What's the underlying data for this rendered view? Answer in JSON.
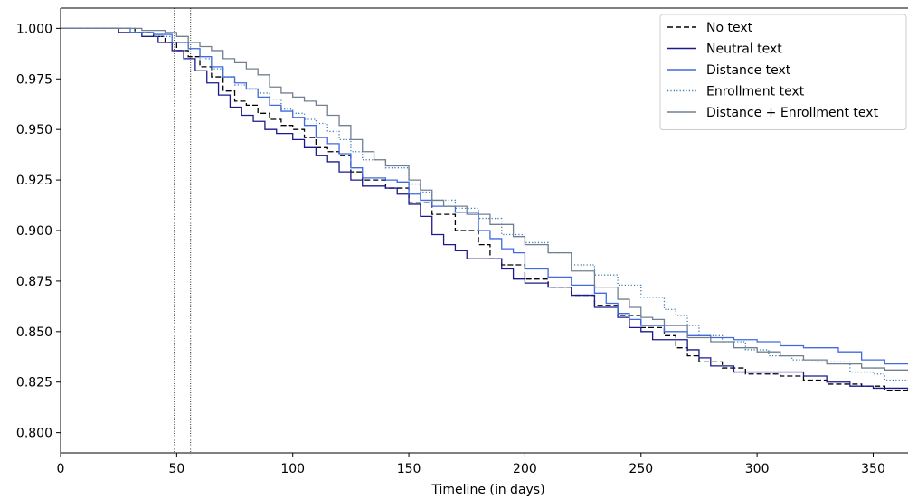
{
  "chart_data": {
    "type": "line",
    "title": "",
    "xlabel": "Timeline (in days)",
    "ylabel": "",
    "xlim": [
      0,
      365
    ],
    "ylim": [
      0.79,
      1.01
    ],
    "x_ticks": [
      0,
      50,
      100,
      150,
      200,
      250,
      300,
      350
    ],
    "y_ticks": [
      0.8,
      0.825,
      0.85,
      0.875,
      0.9,
      0.925,
      0.95,
      0.975,
      1.0
    ],
    "y_tick_labels": [
      "0.800",
      "0.825",
      "0.850",
      "0.875",
      "0.900",
      "0.925",
      "0.950",
      "0.975",
      "1.000"
    ],
    "vertical_reference_lines": [
      49,
      56
    ],
    "grid": false,
    "legend_position": "top-right",
    "series": [
      {
        "name": "No text",
        "color": "#000000",
        "dash": "dashed",
        "points": [
          [
            0,
            1.0
          ],
          [
            22,
            1.0
          ],
          [
            32,
            0.998
          ],
          [
            40,
            0.996
          ],
          [
            45,
            0.993
          ],
          [
            50,
            0.989
          ],
          [
            55,
            0.986
          ],
          [
            60,
            0.981
          ],
          [
            65,
            0.976
          ],
          [
            70,
            0.969
          ],
          [
            75,
            0.964
          ],
          [
            80,
            0.962
          ],
          [
            85,
            0.958
          ],
          [
            90,
            0.955
          ],
          [
            95,
            0.952
          ],
          [
            100,
            0.95
          ],
          [
            105,
            0.946
          ],
          [
            110,
            0.941
          ],
          [
            115,
            0.939
          ],
          [
            120,
            0.937
          ],
          [
            125,
            0.929
          ],
          [
            130,
            0.925
          ],
          [
            140,
            0.921
          ],
          [
            150,
            0.914
          ],
          [
            160,
            0.908
          ],
          [
            170,
            0.9
          ],
          [
            180,
            0.893
          ],
          [
            185,
            0.886
          ],
          [
            190,
            0.883
          ],
          [
            200,
            0.876
          ],
          [
            210,
            0.872
          ],
          [
            220,
            0.868
          ],
          [
            230,
            0.863
          ],
          [
            240,
            0.858
          ],
          [
            250,
            0.852
          ],
          [
            260,
            0.848
          ],
          [
            265,
            0.842
          ],
          [
            270,
            0.838
          ],
          [
            275,
            0.835
          ],
          [
            285,
            0.832
          ],
          [
            295,
            0.829
          ],
          [
            310,
            0.828
          ],
          [
            320,
            0.826
          ],
          [
            330,
            0.824
          ],
          [
            345,
            0.823
          ],
          [
            355,
            0.821
          ],
          [
            365,
            0.82
          ]
        ]
      },
      {
        "name": "Neutral text",
        "color": "#1a1a8c",
        "dash": "solid",
        "points": [
          [
            0,
            1.0
          ],
          [
            20,
            1.0
          ],
          [
            25,
            0.998
          ],
          [
            35,
            0.996
          ],
          [
            42,
            0.993
          ],
          [
            48,
            0.989
          ],
          [
            53,
            0.985
          ],
          [
            58,
            0.979
          ],
          [
            63,
            0.973
          ],
          [
            68,
            0.967
          ],
          [
            73,
            0.961
          ],
          [
            78,
            0.957
          ],
          [
            83,
            0.954
          ],
          [
            88,
            0.95
          ],
          [
            93,
            0.948
          ],
          [
            100,
            0.945
          ],
          [
            105,
            0.941
          ],
          [
            110,
            0.937
          ],
          [
            115,
            0.934
          ],
          [
            120,
            0.929
          ],
          [
            125,
            0.925
          ],
          [
            130,
            0.922
          ],
          [
            140,
            0.921
          ],
          [
            145,
            0.918
          ],
          [
            150,
            0.913
          ],
          [
            155,
            0.907
          ],
          [
            160,
            0.898
          ],
          [
            165,
            0.893
          ],
          [
            170,
            0.89
          ],
          [
            175,
            0.886
          ],
          [
            185,
            0.886
          ],
          [
            190,
            0.881
          ],
          [
            195,
            0.876
          ],
          [
            200,
            0.874
          ],
          [
            210,
            0.872
          ],
          [
            220,
            0.868
          ],
          [
            230,
            0.862
          ],
          [
            240,
            0.857
          ],
          [
            245,
            0.852
          ],
          [
            250,
            0.85
          ],
          [
            255,
            0.846
          ],
          [
            265,
            0.846
          ],
          [
            270,
            0.841
          ],
          [
            275,
            0.837
          ],
          [
            280,
            0.833
          ],
          [
            290,
            0.83
          ],
          [
            300,
            0.83
          ],
          [
            310,
            0.83
          ],
          [
            320,
            0.828
          ],
          [
            330,
            0.825
          ],
          [
            340,
            0.823
          ],
          [
            350,
            0.822
          ],
          [
            365,
            0.821
          ]
        ]
      },
      {
        "name": "Distance text",
        "color": "#4169e1",
        "dash": "solid",
        "points": [
          [
            0,
            1.0
          ],
          [
            22,
            1.0
          ],
          [
            30,
            0.998
          ],
          [
            40,
            0.997
          ],
          [
            48,
            0.993
          ],
          [
            55,
            0.99
          ],
          [
            60,
            0.986
          ],
          [
            65,
            0.981
          ],
          [
            70,
            0.976
          ],
          [
            75,
            0.973
          ],
          [
            80,
            0.97
          ],
          [
            85,
            0.966
          ],
          [
            90,
            0.962
          ],
          [
            95,
            0.959
          ],
          [
            100,
            0.956
          ],
          [
            105,
            0.952
          ],
          [
            110,
            0.946
          ],
          [
            115,
            0.943
          ],
          [
            120,
            0.938
          ],
          [
            125,
            0.931
          ],
          [
            130,
            0.926
          ],
          [
            140,
            0.925
          ],
          [
            145,
            0.924
          ],
          [
            150,
            0.918
          ],
          [
            155,
            0.915
          ],
          [
            160,
            0.912
          ],
          [
            170,
            0.909
          ],
          [
            180,
            0.9
          ],
          [
            185,
            0.896
          ],
          [
            190,
            0.891
          ],
          [
            195,
            0.889
          ],
          [
            200,
            0.881
          ],
          [
            210,
            0.877
          ],
          [
            220,
            0.873
          ],
          [
            230,
            0.869
          ],
          [
            235,
            0.864
          ],
          [
            240,
            0.859
          ],
          [
            245,
            0.856
          ],
          [
            250,
            0.853
          ],
          [
            260,
            0.85
          ],
          [
            270,
            0.848
          ],
          [
            280,
            0.847
          ],
          [
            290,
            0.846
          ],
          [
            300,
            0.845
          ],
          [
            310,
            0.843
          ],
          [
            320,
            0.842
          ],
          [
            335,
            0.84
          ],
          [
            345,
            0.836
          ],
          [
            355,
            0.834
          ],
          [
            365,
            0.834
          ]
        ]
      },
      {
        "name": "Enrollment text",
        "color": "#3a7ab5",
        "dash": "dotted",
        "points": [
          [
            0,
            1.0
          ],
          [
            22,
            1.0
          ],
          [
            32,
            0.998
          ],
          [
            40,
            0.996
          ],
          [
            48,
            0.993
          ],
          [
            55,
            0.99
          ],
          [
            60,
            0.985
          ],
          [
            65,
            0.98
          ],
          [
            70,
            0.976
          ],
          [
            75,
            0.972
          ],
          [
            80,
            0.97
          ],
          [
            85,
            0.968
          ],
          [
            90,
            0.965
          ],
          [
            95,
            0.96
          ],
          [
            100,
            0.958
          ],
          [
            105,
            0.955
          ],
          [
            110,
            0.953
          ],
          [
            115,
            0.949
          ],
          [
            120,
            0.945
          ],
          [
            125,
            0.939
          ],
          [
            130,
            0.935
          ],
          [
            140,
            0.931
          ],
          [
            150,
            0.923
          ],
          [
            155,
            0.919
          ],
          [
            160,
            0.915
          ],
          [
            170,
            0.911
          ],
          [
            180,
            0.906
          ],
          [
            190,
            0.898
          ],
          [
            200,
            0.894
          ],
          [
            210,
            0.889
          ],
          [
            220,
            0.883
          ],
          [
            230,
            0.878
          ],
          [
            240,
            0.873
          ],
          [
            250,
            0.867
          ],
          [
            260,
            0.861
          ],
          [
            265,
            0.858
          ],
          [
            270,
            0.853
          ],
          [
            275,
            0.848
          ],
          [
            285,
            0.845
          ],
          [
            295,
            0.841
          ],
          [
            305,
            0.838
          ],
          [
            315,
            0.836
          ],
          [
            325,
            0.835
          ],
          [
            340,
            0.83
          ],
          [
            350,
            0.829
          ],
          [
            355,
            0.826
          ],
          [
            365,
            0.826
          ]
        ]
      },
      {
        "name": "Distance + Enrollment text",
        "color": "#708090",
        "dash": "solid",
        "points": [
          [
            0,
            1.0
          ],
          [
            22,
            1.0
          ],
          [
            35,
            0.999
          ],
          [
            45,
            0.998
          ],
          [
            50,
            0.996
          ],
          [
            55,
            0.993
          ],
          [
            60,
            0.991
          ],
          [
            65,
            0.989
          ],
          [
            70,
            0.985
          ],
          [
            75,
            0.983
          ],
          [
            80,
            0.98
          ],
          [
            85,
            0.977
          ],
          [
            90,
            0.971
          ],
          [
            95,
            0.968
          ],
          [
            100,
            0.966
          ],
          [
            105,
            0.964
          ],
          [
            110,
            0.962
          ],
          [
            115,
            0.957
          ],
          [
            120,
            0.952
          ],
          [
            125,
            0.945
          ],
          [
            130,
            0.939
          ],
          [
            135,
            0.935
          ],
          [
            140,
            0.932
          ],
          [
            150,
            0.925
          ],
          [
            155,
            0.92
          ],
          [
            160,
            0.915
          ],
          [
            165,
            0.912
          ],
          [
            175,
            0.908
          ],
          [
            185,
            0.903
          ],
          [
            195,
            0.897
          ],
          [
            200,
            0.893
          ],
          [
            210,
            0.889
          ],
          [
            220,
            0.88
          ],
          [
            230,
            0.872
          ],
          [
            240,
            0.866
          ],
          [
            245,
            0.862
          ],
          [
            250,
            0.857
          ],
          [
            255,
            0.856
          ],
          [
            260,
            0.853
          ],
          [
            270,
            0.847
          ],
          [
            280,
            0.845
          ],
          [
            290,
            0.842
          ],
          [
            300,
            0.84
          ],
          [
            310,
            0.838
          ],
          [
            320,
            0.836
          ],
          [
            330,
            0.834
          ],
          [
            345,
            0.832
          ],
          [
            355,
            0.831
          ],
          [
            365,
            0.831
          ]
        ]
      }
    ]
  }
}
